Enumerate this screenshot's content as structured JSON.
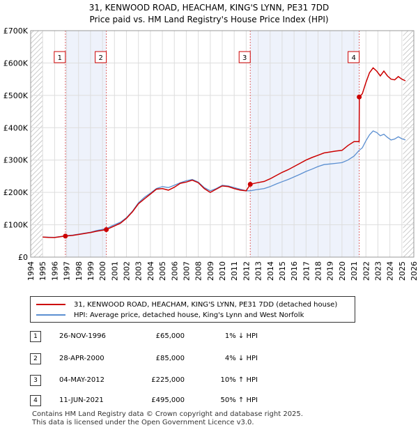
{
  "title_line1": "31, KENWOOD ROAD, HEACHAM, KING'S LYNN, PE31 7DD",
  "title_line2": "Price paid vs. HM Land Registry's House Price Index (HPI)",
  "colors": {
    "property": "#cc0000",
    "hpi": "#5b8fd1",
    "shade": "#eef2fb"
  },
  "chart_data": {
    "type": "line",
    "xlim": [
      1994,
      2026
    ],
    "ylim": [
      0,
      700000
    ],
    "yticks": [
      0,
      100000,
      200000,
      300000,
      400000,
      500000,
      600000,
      700000
    ],
    "ytick_labels": [
      "£0",
      "£100K",
      "£200K",
      "£300K",
      "£400K",
      "£500K",
      "£600K",
      "£700K"
    ],
    "xtick_labels": [
      "1994",
      "1995",
      "1996",
      "1997",
      "1998",
      "1999",
      "2000",
      "2001",
      "2002",
      "2003",
      "2004",
      "2005",
      "2006",
      "2007",
      "2008",
      "2009",
      "2010",
      "2011",
      "2012",
      "2013",
      "2014",
      "2015",
      "2016",
      "2017",
      "2018",
      "2019",
      "2020",
      "2021",
      "2022",
      "2023",
      "2024",
      "2025",
      "2026"
    ],
    "series": [
      {
        "name": "31, KENWOOD ROAD, HEACHAM, KING'S LYNN, PE31 7DD (detached house)",
        "points": [
          [
            1995,
            62000
          ],
          [
            1995.5,
            61000
          ],
          [
            1996,
            60500
          ],
          [
            1996.9,
            65000
          ],
          [
            1997.5,
            67000
          ],
          [
            1998,
            70000
          ],
          [
            1998.5,
            73000
          ],
          [
            1999,
            76000
          ],
          [
            1999.5,
            80000
          ],
          [
            2000.32,
            85000
          ],
          [
            2000.8,
            93000
          ],
          [
            2001.5,
            105000
          ],
          [
            2002,
            120000
          ],
          [
            2002.5,
            140000
          ],
          [
            2003,
            165000
          ],
          [
            2003.5,
            180000
          ],
          [
            2004,
            195000
          ],
          [
            2004.5,
            210000
          ],
          [
            2005,
            212000
          ],
          [
            2005.5,
            207000
          ],
          [
            2006,
            216000
          ],
          [
            2006.5,
            228000
          ],
          [
            2007,
            232000
          ],
          [
            2007.5,
            238000
          ],
          [
            2008,
            230000
          ],
          [
            2008.5,
            212000
          ],
          [
            2009,
            200000
          ],
          [
            2009.5,
            210000
          ],
          [
            2010,
            220000
          ],
          [
            2010.5,
            218000
          ],
          [
            2011,
            212000
          ],
          [
            2011.5,
            207000
          ],
          [
            2012,
            205000
          ],
          [
            2012.34,
            225000
          ],
          [
            2012.8,
            229000
          ],
          [
            2013.5,
            234000
          ],
          [
            2014,
            242000
          ],
          [
            2014.5,
            252000
          ],
          [
            2015,
            262000
          ],
          [
            2015.5,
            270000
          ],
          [
            2016,
            280000
          ],
          [
            2016.5,
            290000
          ],
          [
            2017,
            300000
          ],
          [
            2017.5,
            308000
          ],
          [
            2018,
            315000
          ],
          [
            2018.5,
            322000
          ],
          [
            2019,
            325000
          ],
          [
            2019.5,
            328000
          ],
          [
            2020,
            330000
          ],
          [
            2020.5,
            345000
          ],
          [
            2021,
            357000
          ],
          [
            2021.43,
            357000
          ],
          [
            2021.45,
            495000
          ],
          [
            2021.7,
            505000
          ],
          [
            2022,
            540000
          ],
          [
            2022.3,
            570000
          ],
          [
            2022.6,
            585000
          ],
          [
            2022.9,
            575000
          ],
          [
            2023.2,
            560000
          ],
          [
            2023.5,
            575000
          ],
          [
            2023.8,
            560000
          ],
          [
            2024.1,
            550000
          ],
          [
            2024.4,
            548000
          ],
          [
            2024.7,
            558000
          ],
          [
            2025,
            550000
          ],
          [
            2025.3,
            545000
          ]
        ]
      },
      {
        "name": "HPI: Average price, detached house, King's Lynn and West Norfolk",
        "points": [
          [
            1995,
            62000
          ],
          [
            1995.5,
            61500
          ],
          [
            1996,
            61000
          ],
          [
            1996.9,
            66000
          ],
          [
            1997.5,
            68000
          ],
          [
            1998,
            71000
          ],
          [
            1998.5,
            74000
          ],
          [
            1999,
            77000
          ],
          [
            1999.5,
            82000
          ],
          [
            2000.32,
            88000
          ],
          [
            2000.8,
            97000
          ],
          [
            2001.5,
            108000
          ],
          [
            2002,
            122000
          ],
          [
            2002.5,
            142000
          ],
          [
            2003,
            168000
          ],
          [
            2003.5,
            185000
          ],
          [
            2004,
            198000
          ],
          [
            2004.5,
            212000
          ],
          [
            2005,
            218000
          ],
          [
            2005.5,
            215000
          ],
          [
            2006,
            222000
          ],
          [
            2006.5,
            230000
          ],
          [
            2007,
            236000
          ],
          [
            2007.5,
            240000
          ],
          [
            2008,
            232000
          ],
          [
            2008.5,
            215000
          ],
          [
            2009,
            205000
          ],
          [
            2009.5,
            212000
          ],
          [
            2010,
            222000
          ],
          [
            2010.5,
            220000
          ],
          [
            2011,
            215000
          ],
          [
            2011.5,
            210000
          ],
          [
            2012,
            205000
          ],
          [
            2012.34,
            205000
          ],
          [
            2012.8,
            208000
          ],
          [
            2013.5,
            212000
          ],
          [
            2014,
            218000
          ],
          [
            2014.5,
            226000
          ],
          [
            2015,
            233000
          ],
          [
            2015.5,
            240000
          ],
          [
            2016,
            248000
          ],
          [
            2016.5,
            256000
          ],
          [
            2017,
            265000
          ],
          [
            2017.5,
            272000
          ],
          [
            2018,
            280000
          ],
          [
            2018.5,
            286000
          ],
          [
            2019,
            288000
          ],
          [
            2019.5,
            290000
          ],
          [
            2020,
            292000
          ],
          [
            2020.5,
            300000
          ],
          [
            2021,
            312000
          ],
          [
            2021.43,
            330000
          ],
          [
            2021.7,
            338000
          ],
          [
            2022,
            360000
          ],
          [
            2022.3,
            378000
          ],
          [
            2022.6,
            390000
          ],
          [
            2022.9,
            385000
          ],
          [
            2023.2,
            375000
          ],
          [
            2023.5,
            380000
          ],
          [
            2023.8,
            370000
          ],
          [
            2024.1,
            362000
          ],
          [
            2024.4,
            365000
          ],
          [
            2024.7,
            372000
          ],
          [
            2025,
            366000
          ],
          [
            2025.3,
            362000
          ]
        ]
      }
    ],
    "sales": [
      {
        "num": "1",
        "x": 1996.9,
        "price": 65000
      },
      {
        "num": "2",
        "x": 2000.32,
        "price": 85000
      },
      {
        "num": "3",
        "x": 2012.34,
        "price": 225000
      },
      {
        "num": "4",
        "x": 2021.44,
        "price": 495000
      }
    ],
    "shaded_ranges": [
      [
        1996.9,
        2000.32
      ],
      [
        2012.34,
        2021.44
      ]
    ],
    "hatched_ranges": [
      [
        1994,
        1995
      ],
      [
        2025.1,
        2026
      ]
    ]
  },
  "legend": [
    "31, KENWOOD ROAD, HEACHAM, KING'S LYNN, PE31 7DD (detached house)",
    "HPI: Average price, detached house, King's Lynn and West Norfolk"
  ],
  "transactions": [
    {
      "num": "1",
      "date": "26-NOV-1996",
      "price": "£65,000",
      "diff": "1% ↓ HPI"
    },
    {
      "num": "2",
      "date": "28-APR-2000",
      "price": "£85,000",
      "diff": "4% ↓ HPI"
    },
    {
      "num": "3",
      "date": "04-MAY-2012",
      "price": "£225,000",
      "diff": "10% ↑ HPI"
    },
    {
      "num": "4",
      "date": "11-JUN-2021",
      "price": "£495,000",
      "diff": "50% ↑ HPI"
    }
  ],
  "footer_line1": "Contains HM Land Registry data © Crown copyright and database right 2025.",
  "footer_line2": "This data is licensed under the Open Government Licence v3.0."
}
